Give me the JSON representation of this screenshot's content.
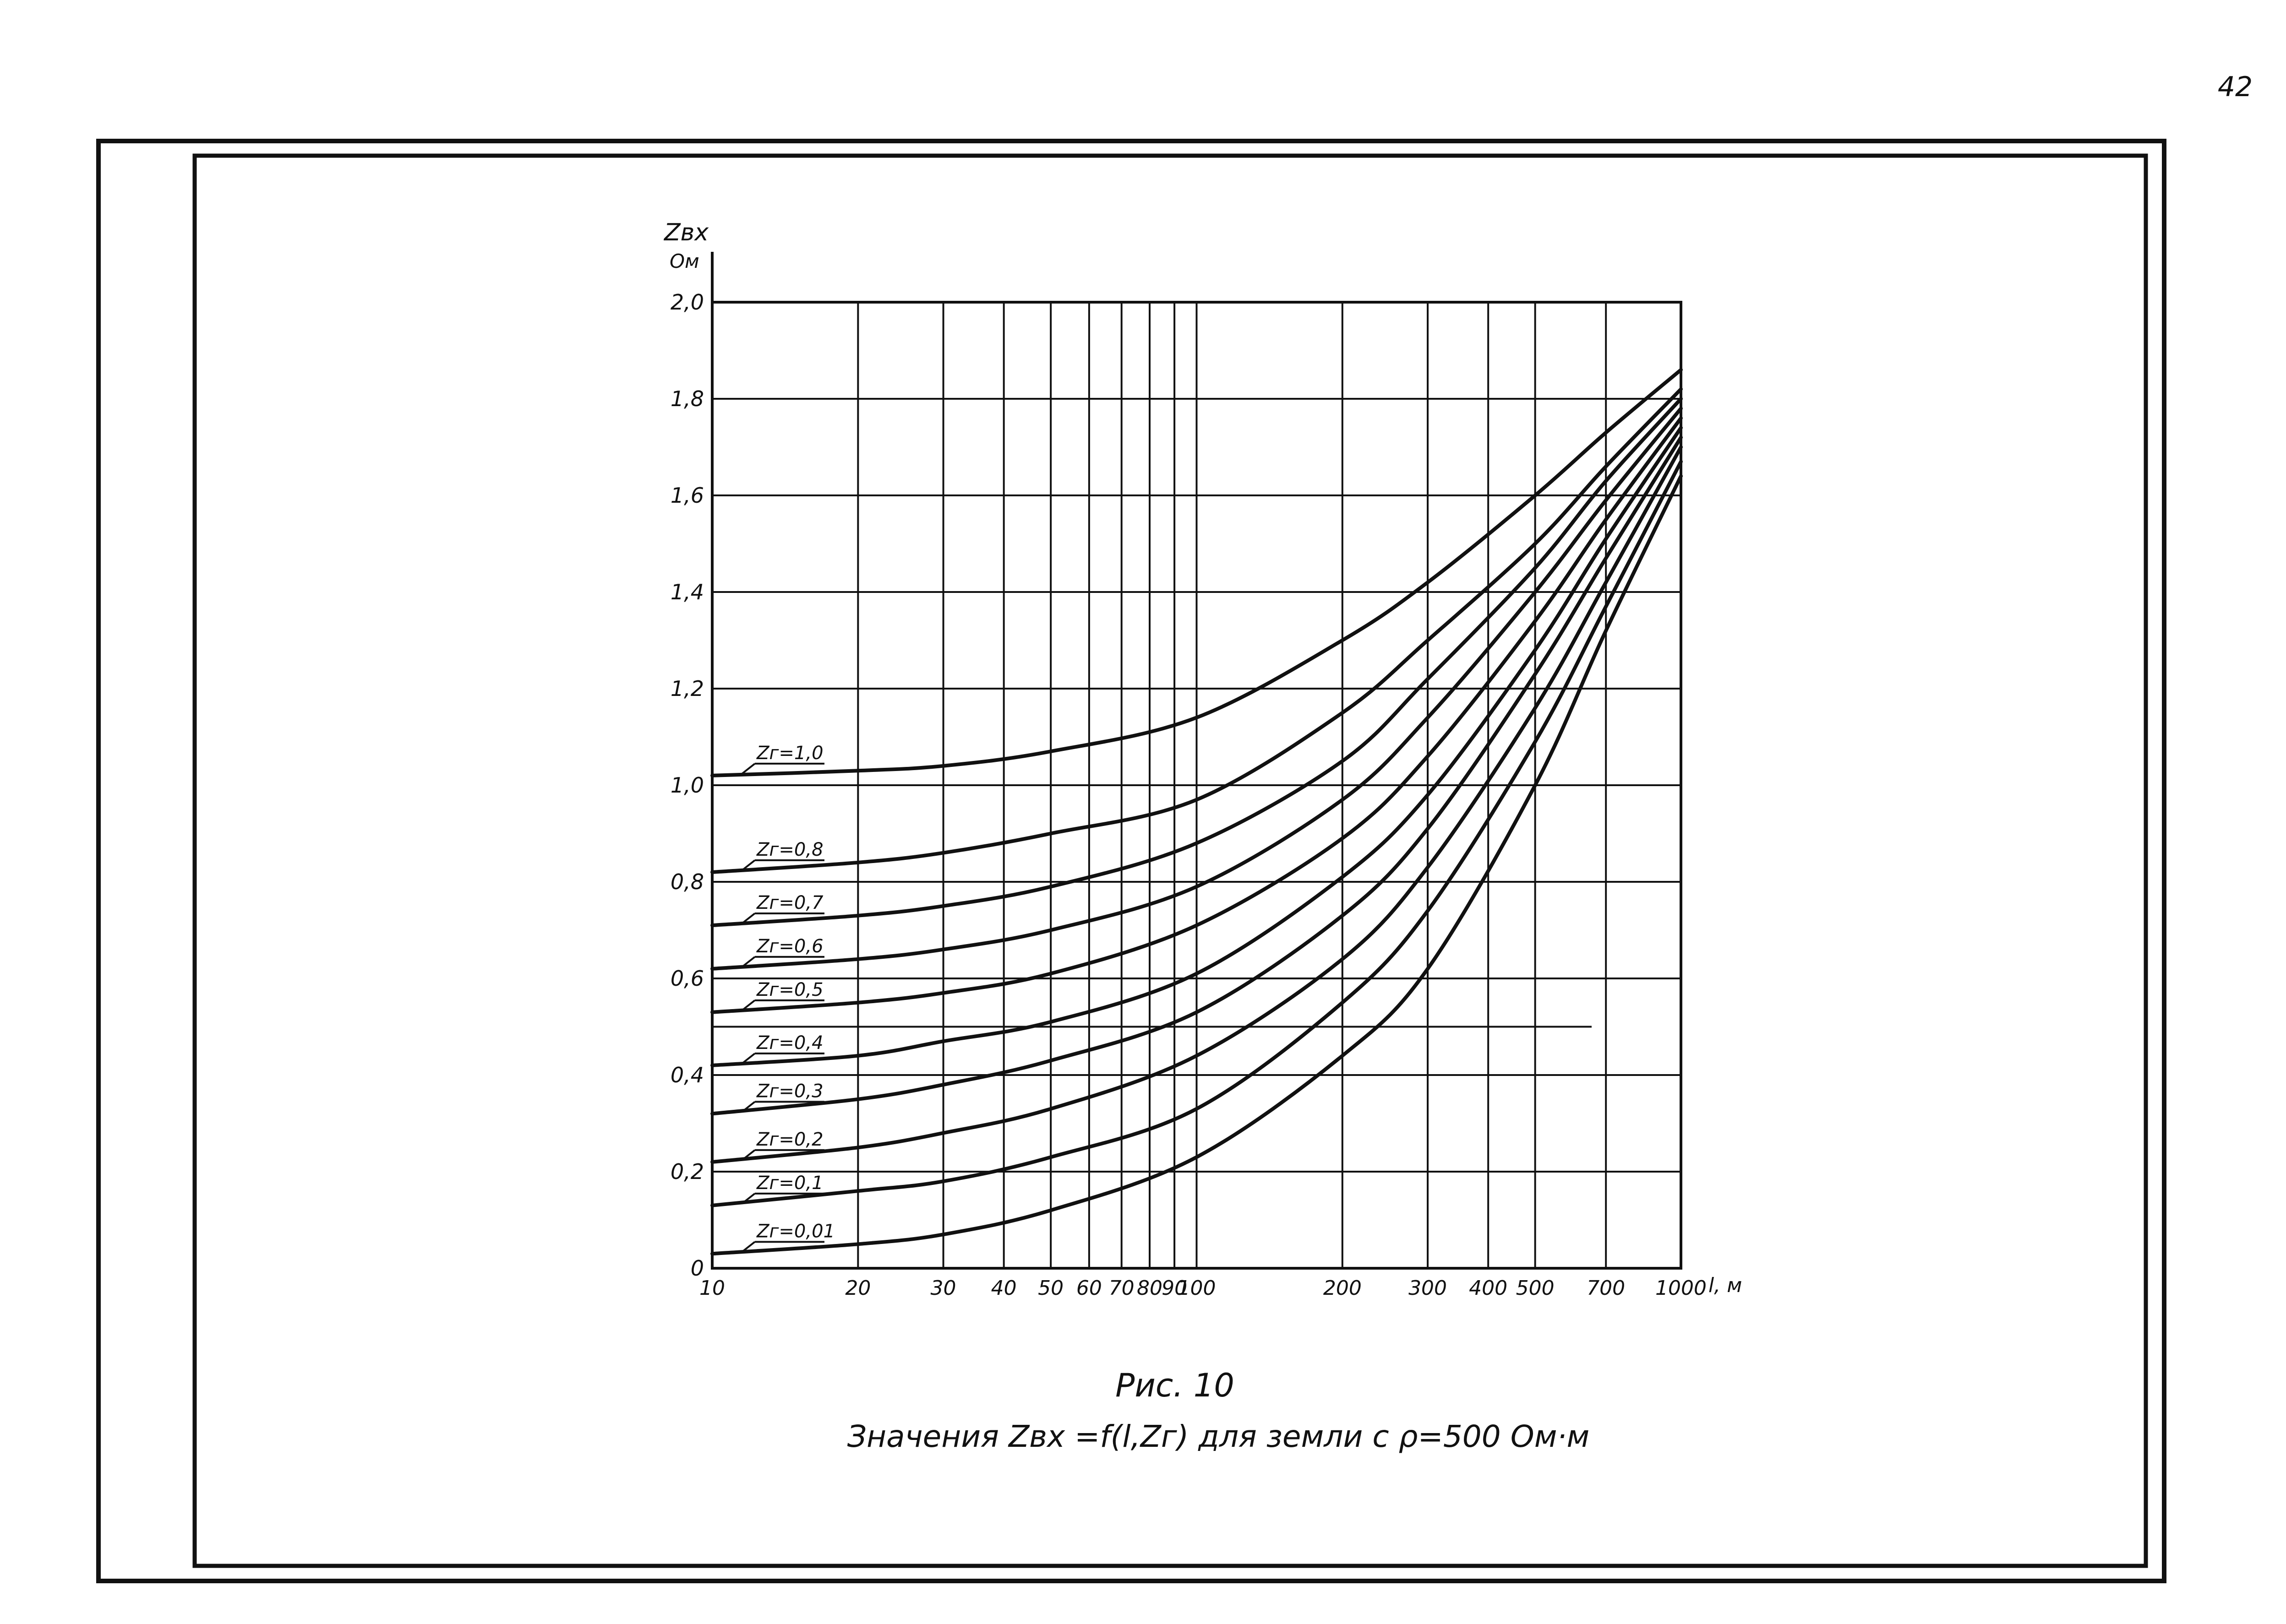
{
  "page": {
    "number": "42"
  },
  "caption": {
    "line1": "Рис. 10",
    "line2": "Значения Zвх =f(l,Zг) для земли с ρ=500 Ом·м"
  },
  "chart_data": {
    "type": "line",
    "title": "",
    "ylabel_line1": "Zвх",
    "ylabel_line2": "Ом",
    "xlabel": "l, м",
    "x_scale": "log",
    "xlim": [
      10,
      1000
    ],
    "ylim": [
      0,
      2.0
    ],
    "grid": true,
    "x_ticks": [
      10,
      20,
      30,
      40,
      50,
      60,
      70,
      80,
      90,
      100,
      200,
      300,
      400,
      500,
      700,
      1000
    ],
    "x_tick_labels": [
      "10",
      "20",
      "30",
      "40",
      "50",
      "60",
      "70",
      "80",
      "90",
      "100",
      "200",
      "300",
      "400",
      "500",
      "700",
      "1000"
    ],
    "y_ticks": [
      0,
      0.2,
      0.4,
      0.6,
      0.8,
      1.0,
      1.2,
      1.4,
      1.6,
      1.8,
      2.0
    ],
    "y_tick_labels": [
      "0",
      "0,2",
      "0,4",
      "0,6",
      "0,8",
      "1,0",
      "1,2",
      "1,4",
      "1,6",
      "1,8",
      "2,0"
    ],
    "x": [
      10,
      20,
      30,
      50,
      100,
      200,
      300,
      500,
      700,
      1000
    ],
    "series": [
      {
        "name": "Zг=1,0",
        "values": [
          1.02,
          1.03,
          1.04,
          1.07,
          1.14,
          1.3,
          1.42,
          1.6,
          1.73,
          1.86
        ]
      },
      {
        "name": "Zг=0,8",
        "values": [
          0.82,
          0.84,
          0.86,
          0.9,
          0.97,
          1.15,
          1.3,
          1.5,
          1.66,
          1.82
        ]
      },
      {
        "name": "Zг=0,7",
        "values": [
          0.71,
          0.73,
          0.75,
          0.79,
          0.88,
          1.05,
          1.22,
          1.45,
          1.63,
          1.8
        ]
      },
      {
        "name": "Zг=0,6",
        "values": [
          0.62,
          0.64,
          0.66,
          0.7,
          0.79,
          0.97,
          1.14,
          1.4,
          1.59,
          1.78
        ]
      },
      {
        "name": "Zг=0,5",
        "values": [
          0.53,
          0.55,
          0.57,
          0.61,
          0.71,
          0.89,
          1.06,
          1.34,
          1.55,
          1.76
        ]
      },
      {
        "name": "Zг=0,4",
        "values": [
          0.42,
          0.44,
          0.47,
          0.51,
          0.61,
          0.81,
          0.98,
          1.28,
          1.51,
          1.74
        ]
      },
      {
        "name": "Zг=0,3",
        "values": [
          0.32,
          0.35,
          0.38,
          0.43,
          0.53,
          0.73,
          0.91,
          1.23,
          1.47,
          1.72
        ]
      },
      {
        "name": "Zг=0,2",
        "values": [
          0.22,
          0.25,
          0.28,
          0.33,
          0.44,
          0.64,
          0.83,
          1.16,
          1.42,
          1.7
        ]
      },
      {
        "name": "Zг=0,1",
        "values": [
          0.13,
          0.16,
          0.18,
          0.23,
          0.33,
          0.55,
          0.74,
          1.09,
          1.37,
          1.67
        ]
      },
      {
        "name": "Zг=0,01",
        "values": [
          0.03,
          0.05,
          0.07,
          0.12,
          0.23,
          0.44,
          0.62,
          1.0,
          1.32,
          1.64
        ]
      }
    ]
  }
}
